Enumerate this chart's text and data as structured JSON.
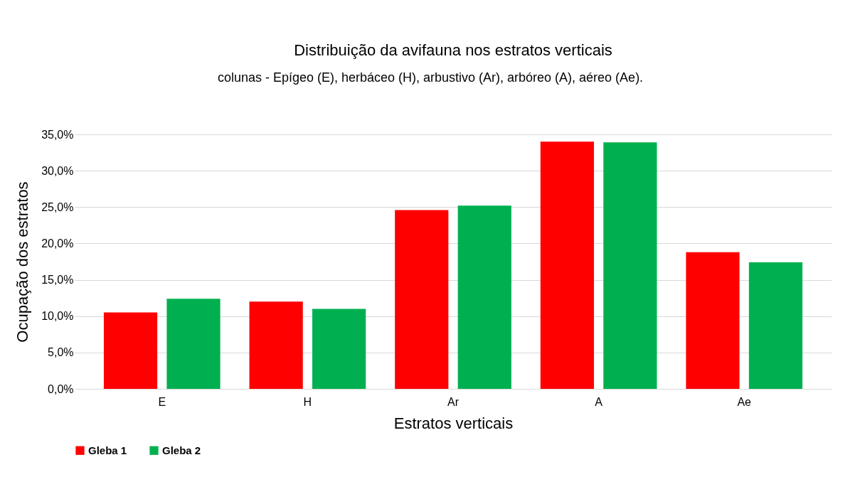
{
  "chart_data": {
    "type": "bar",
    "title": "Distribuição da avifauna nos estratos verticais",
    "xlabel": "Estratos verticais",
    "ylabel": "Ocupação dos estratos",
    "annotations": [
      "colunas - Epígeo (E), herbáceo (H), arbustivo (Ar), arbóreo (A), aéreo (Ae)."
    ],
    "categories": [
      "E",
      "H",
      "Ar",
      "A",
      "Ae"
    ],
    "series": [
      {
        "name": "Gleba 1",
        "color": "#ff0000",
        "values": [
          10.5,
          12.0,
          24.6,
          34.0,
          18.8
        ]
      },
      {
        "name": "Gleba 2",
        "color": "#00b050",
        "values": [
          12.4,
          11.0,
          25.2,
          33.9,
          17.4
        ]
      }
    ],
    "ylim": [
      0,
      35
    ],
    "yticks": [
      {
        "value": 0,
        "label": "0,0%"
      },
      {
        "value": 5,
        "label": "5,0%"
      },
      {
        "value": 10,
        "label": "10,0%"
      },
      {
        "value": 15,
        "label": "15,0%"
      },
      {
        "value": 20,
        "label": "20,0%"
      },
      {
        "value": 25,
        "label": "25,0%"
      },
      {
        "value": 30,
        "label": "30,0%"
      },
      {
        "value": 35,
        "label": "35,0%"
      }
    ],
    "grid": "y",
    "legend": "bottom"
  }
}
